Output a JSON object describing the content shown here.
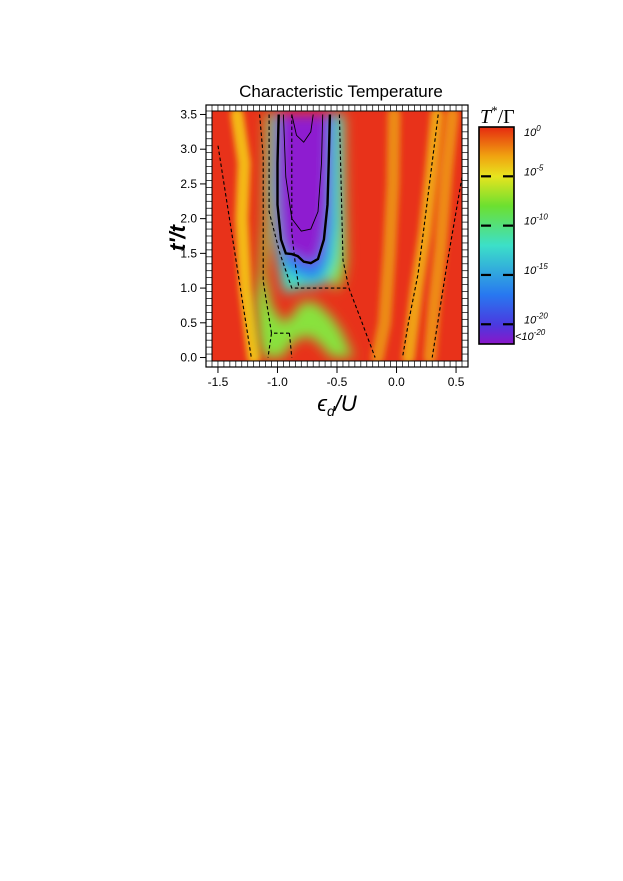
{
  "chart_data": {
    "type": "heatmap",
    "title": "Characteristic Temperature",
    "xlabel": "ϵd/U",
    "xlabel_parts": {
      "main": "ϵ",
      "sub": "d",
      "rest": "/U"
    },
    "ylabel": "t'/t",
    "xlim": [
      -1.55,
      0.55
    ],
    "ylim": [
      -0.05,
      3.55
    ],
    "x_ticks": [
      -1.5,
      -1.0,
      -0.5,
      0.0,
      0.5
    ],
    "x_tick_labels": [
      "-1.5",
      "-1.0",
      "-0.5",
      "0.0",
      "0.5"
    ],
    "y_ticks": [
      0.0,
      0.5,
      1.0,
      1.5,
      2.0,
      2.5,
      3.0,
      3.5
    ],
    "y_tick_labels": [
      "0.0",
      "0.5",
      "1.0",
      "1.5",
      "2.0",
      "2.5",
      "3.0",
      "3.5"
    ],
    "colorbar": {
      "title": "T*/Γ",
      "title_parts": {
        "t": "T",
        "sup": "*",
        "rest": "/Γ"
      },
      "label_values": [
        0,
        -5,
        -10,
        -15,
        -20,
        -21
      ],
      "labels": [
        {
          "base": "10",
          "exp": "0"
        },
        {
          "base": "10",
          "exp": "-5"
        },
        {
          "base": "10",
          "exp": "-10"
        },
        {
          "base": "10",
          "exp": "-15"
        },
        {
          "base": "10",
          "exp": "-20"
        },
        {
          "base": "<10",
          "exp": "-20"
        }
      ],
      "stops": [
        {
          "log10": 0,
          "color": "#e62a10"
        },
        {
          "log10": -3,
          "color": "#f0a410"
        },
        {
          "log10": -5,
          "color": "#e8e41e"
        },
        {
          "log10": -8,
          "color": "#6ce030"
        },
        {
          "log10": -12,
          "color": "#3ce0c8"
        },
        {
          "log10": -17,
          "color": "#2878f0"
        },
        {
          "log10": -20,
          "color": "#4a3ae0"
        },
        {
          "log10": -22,
          "color": "#8a16c8"
        }
      ]
    },
    "regions": [
      {
        "log10_T": -21,
        "color": "#8e1fd0",
        "boundary": [
          [
            -0.99,
            3.5
          ],
          [
            -1.0,
            2.8
          ],
          [
            -1.0,
            2.2
          ],
          [
            -0.97,
            1.7
          ],
          [
            -0.93,
            1.5
          ],
          [
            -0.88,
            1.49
          ],
          [
            -0.83,
            1.46
          ],
          [
            -0.78,
            1.38
          ],
          [
            -0.72,
            1.36
          ],
          [
            -0.66,
            1.42
          ],
          [
            -0.61,
            1.7
          ],
          [
            -0.58,
            2.2
          ],
          [
            -0.57,
            2.8
          ],
          [
            -0.56,
            3.5
          ]
        ]
      },
      {
        "log10_T": -17,
        "color": "#2a7cf0",
        "boundary": [
          [
            -1.02,
            3.5
          ],
          [
            -1.03,
            2.5
          ],
          [
            -1.0,
            1.75
          ],
          [
            -0.95,
            1.35
          ],
          [
            -0.9,
            1.25
          ],
          [
            -0.84,
            1.2
          ],
          [
            -0.74,
            1.12
          ],
          [
            -0.64,
            1.15
          ],
          [
            -0.57,
            1.4
          ],
          [
            -0.53,
            1.9
          ],
          [
            -0.52,
            3.5
          ]
        ]
      },
      {
        "log10_T": -12,
        "color": "#3fe0c4",
        "boundary": [
          [
            -1.03,
            3.5
          ],
          [
            -1.05,
            2.4
          ],
          [
            -1.03,
            1.7
          ],
          [
            -0.98,
            1.2
          ],
          [
            -0.94,
            0.9
          ],
          [
            -0.9,
            0.95
          ],
          [
            -0.8,
            1.0
          ],
          [
            -0.66,
            1.02
          ],
          [
            -0.58,
            1.08
          ],
          [
            -0.5,
            1.4
          ],
          [
            -0.47,
            1.9
          ],
          [
            -0.46,
            3.5
          ]
        ]
      },
      {
        "log10_T": -8,
        "color": "#88e23c",
        "boundary": [
          [
            -1.05,
            3.5
          ],
          [
            -1.07,
            2.4
          ],
          [
            -1.08,
            1.6
          ],
          [
            -1.1,
            1.2
          ],
          [
            -1.05,
            0.75
          ],
          [
            -0.95,
            0.5
          ],
          [
            -0.88,
            0.6
          ],
          [
            -0.8,
            0.8
          ],
          [
            -0.68,
            0.8
          ],
          [
            -0.55,
            0.6
          ],
          [
            -0.46,
            0.38
          ],
          [
            -0.4,
            0.15
          ],
          [
            -0.36,
            0.0
          ],
          [
            -0.55,
            0.0
          ],
          [
            -0.62,
            0.15
          ],
          [
            -0.72,
            0.3
          ],
          [
            -0.82,
            0.28
          ],
          [
            -0.92,
            0.12
          ],
          [
            -0.95,
            0.0
          ],
          [
            -1.12,
            0.0
          ],
          [
            -1.16,
            0.3
          ],
          [
            -1.18,
            0.8
          ],
          [
            -1.15,
            1.3
          ],
          [
            -1.12,
            2.0
          ],
          [
            -1.1,
            3.5
          ],
          [
            -0.44,
            3.5
          ],
          [
            -0.43,
            2.2
          ],
          [
            -0.42,
            1.4
          ],
          [
            -0.45,
            1.1
          ],
          [
            -0.52,
            0.95
          ]
        ]
      }
    ],
    "stripes": [
      {
        "log10_T": -2.5,
        "color": "#f4b814",
        "path": [
          [
            -1.34,
            3.5
          ],
          [
            -1.28,
            2.8
          ],
          [
            -1.3,
            2.0
          ],
          [
            -1.27,
            1.0
          ],
          [
            -1.2,
            0.0
          ]
        ]
      },
      {
        "log10_T": -2.0,
        "color": "#f0a012",
        "path": [
          [
            0.34,
            3.5
          ],
          [
            0.29,
            2.6
          ],
          [
            0.24,
            1.8
          ],
          [
            0.17,
            1.0
          ],
          [
            0.1,
            0.0
          ]
        ]
      },
      {
        "log10_T": -1.5,
        "color": "#ee8a12",
        "path": [
          [
            0.47,
            3.5
          ],
          [
            0.42,
            2.7
          ],
          [
            0.37,
            1.6
          ],
          [
            0.32,
            0.8
          ],
          [
            0.28,
            0.0
          ]
        ]
      },
      {
        "log10_T": -1.5,
        "color": "#ec8a14",
        "path": [
          [
            -0.02,
            3.5
          ],
          [
            -0.03,
            2.5
          ],
          [
            -0.06,
            1.5
          ],
          [
            -0.1,
            0.5
          ],
          [
            -0.16,
            0.0
          ]
        ]
      }
    ],
    "contours": [
      {
        "style": "thick-solid",
        "path": [
          [
            -0.99,
            3.5
          ],
          [
            -1.0,
            2.8
          ],
          [
            -1.0,
            2.2
          ],
          [
            -0.97,
            1.7
          ],
          [
            -0.93,
            1.5
          ],
          [
            -0.88,
            1.49
          ],
          [
            -0.83,
            1.46
          ],
          [
            -0.78,
            1.38
          ],
          [
            -0.72,
            1.36
          ],
          [
            -0.66,
            1.42
          ],
          [
            -0.61,
            1.7
          ],
          [
            -0.58,
            2.2
          ],
          [
            -0.57,
            2.8
          ],
          [
            -0.56,
            3.5
          ]
        ]
      },
      {
        "style": "thin-solid",
        "path": [
          [
            -0.95,
            3.5
          ],
          [
            -0.93,
            2.6
          ],
          [
            -0.88,
            2.0
          ],
          [
            -0.8,
            1.82
          ],
          [
            -0.72,
            1.85
          ],
          [
            -0.66,
            2.1
          ],
          [
            -0.63,
            2.8
          ],
          [
            -0.62,
            3.5
          ]
        ]
      },
      {
        "style": "thin-solid",
        "path": [
          [
            -0.88,
            3.5
          ],
          [
            -0.84,
            3.2
          ],
          [
            -0.78,
            3.1
          ],
          [
            -0.72,
            3.25
          ],
          [
            -0.7,
            3.5
          ]
        ]
      }
    ],
    "boundaries": [
      {
        "style": "dashed",
        "path": [
          [
            -1.5,
            3.05
          ],
          [
            -1.22,
            0.0
          ]
        ]
      },
      {
        "style": "dashed",
        "path": [
          [
            -1.07,
            3.5
          ],
          [
            -1.07,
            2.1
          ],
          [
            -0.98,
            1.5
          ],
          [
            -0.88,
            1.0
          ],
          [
            -0.4,
            1.0
          ],
          [
            -0.3,
            0.55
          ],
          [
            -0.18,
            0.0
          ]
        ]
      },
      {
        "style": "dashed",
        "path": [
          [
            -1.15,
            3.5
          ],
          [
            -1.12,
            2.9
          ],
          [
            -1.12,
            1.1
          ],
          [
            -1.05,
            0.35
          ],
          [
            -0.9,
            0.35
          ]
        ]
      },
      {
        "style": "dashed",
        "path": [
          [
            -1.05,
            0.35
          ],
          [
            -1.08,
            0.0
          ]
        ]
      },
      {
        "style": "dashed",
        "path": [
          [
            -0.9,
            0.35
          ],
          [
            -0.88,
            0.0
          ]
        ]
      },
      {
        "style": "dashed",
        "path": [
          [
            -0.88,
            3.5
          ],
          [
            -0.88,
            1.8
          ],
          [
            -0.85,
            1.35
          ],
          [
            -0.82,
            1.0
          ]
        ]
      },
      {
        "style": "dashed",
        "path": [
          [
            -0.48,
            3.5
          ],
          [
            -0.45,
            1.4
          ],
          [
            -0.4,
            1.0
          ]
        ]
      },
      {
        "style": "dashed",
        "path": [
          [
            0.35,
            3.5
          ],
          [
            0.24,
            2.0
          ],
          [
            0.18,
            1.2
          ],
          [
            0.1,
            0.5
          ],
          [
            0.05,
            0.0
          ]
        ]
      },
      {
        "style": "dashed",
        "path": [
          [
            0.55,
            2.6
          ],
          [
            0.42,
            1.3
          ],
          [
            0.3,
            0.0
          ]
        ]
      }
    ],
    "background_color": "#e8321a",
    "grid": false
  }
}
